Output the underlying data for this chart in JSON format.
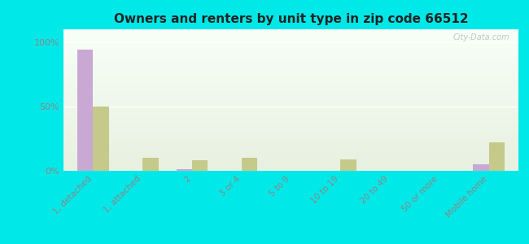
{
  "title": "Owners and renters by unit type in zip code 66512",
  "categories": [
    "1, detached",
    "1, attached",
    "2",
    "3 or 4",
    "5 to 9",
    "10 to 19",
    "20 to 49",
    "50 or more",
    "Mobile home"
  ],
  "owner_values": [
    94,
    0,
    1,
    0,
    0,
    0,
    0,
    0,
    5
  ],
  "renter_values": [
    50,
    10,
    8,
    10,
    0,
    9,
    0,
    0,
    22
  ],
  "owner_color": "#c9a8d4",
  "renter_color": "#c5c98a",
  "background_color": "#00e8e8",
  "plot_bg_top": "#e8f0e0",
  "plot_bg_bottom": "#f5faf0",
  "ylabel_ticks": [
    "0%",
    "50%",
    "100%"
  ],
  "yticks": [
    0,
    50,
    100
  ],
  "ylim": [
    0,
    110
  ],
  "bar_width": 0.32,
  "watermark": "City-Data.com",
  "tick_color": "#888888",
  "title_color": "#222222"
}
